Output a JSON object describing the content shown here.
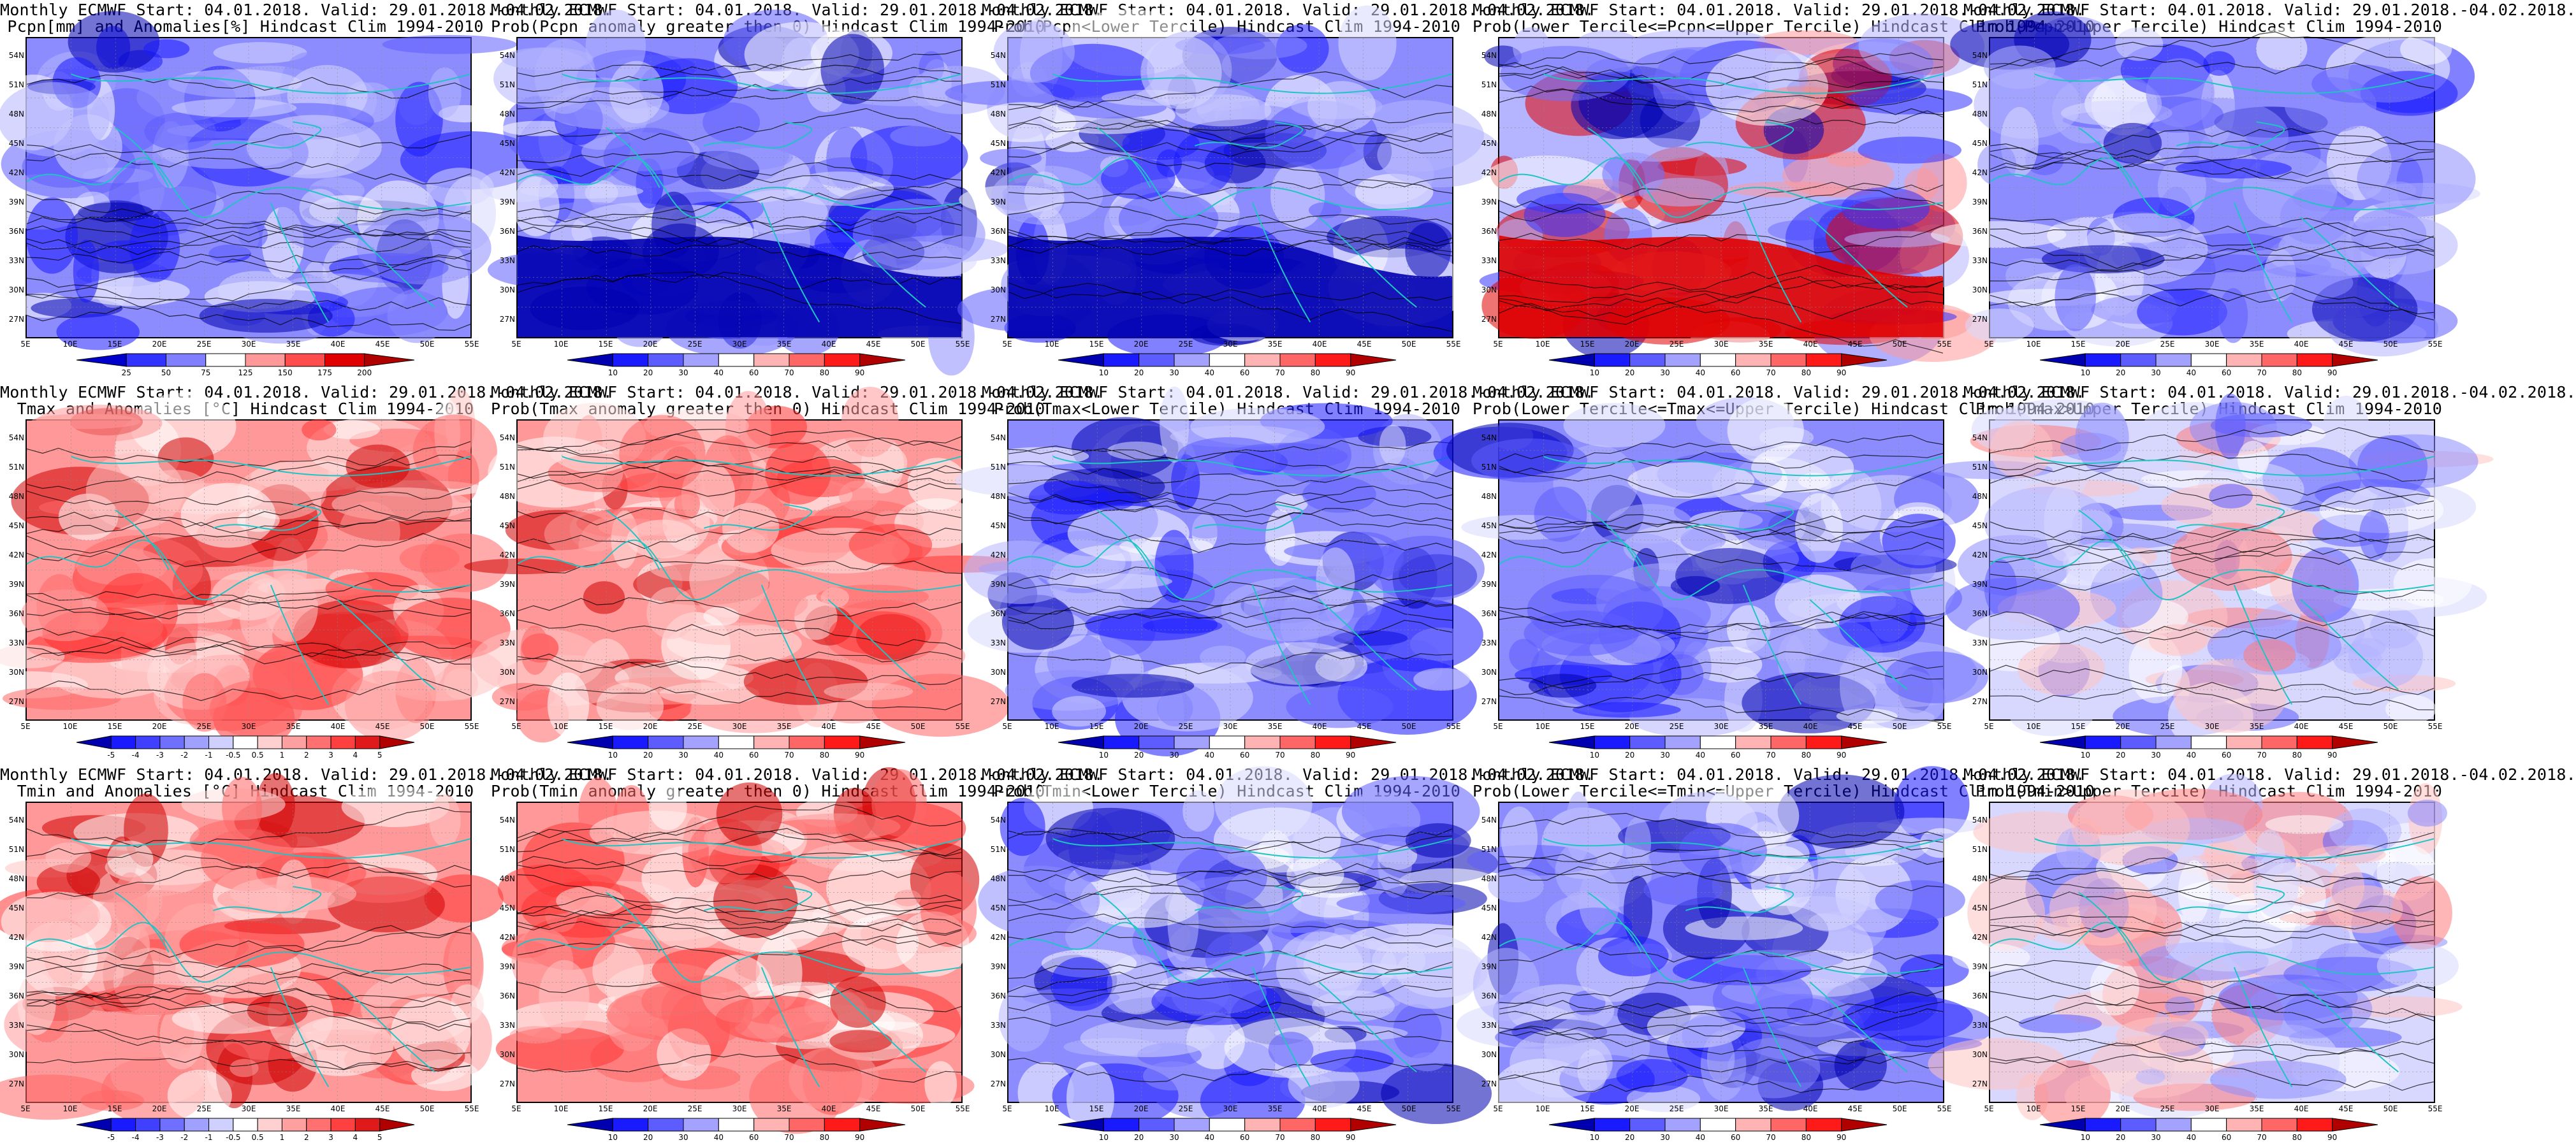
{
  "panel_titles": [
    {
      "line1": "Monthly ECMWF Start: 04.01.2018. Valid: 29.01.2018.-04.02.2018.",
      "line2": "Pcpn[mm] and Anomalies[%] Hindcast Clim 1994-2010"
    },
    {
      "line1": "Monthly ECMWF Start: 04.01.2018. Valid: 29.01.2018.-04.02.2018.",
      "line2": "Prob(Pcpn anomaly greater then 0) Hindcast Clim 1994-2010"
    },
    {
      "line1": "Monthly ECMWF Start: 04.01.2018. Valid: 29.01.2018.-04.02.2018.",
      "line2": "Prob(Pcpn<Lower Tercile) Hindcast Clim 1994-2010"
    },
    {
      "line1": "Monthly ECMWF Start: 04.01.2018. Valid: 29.01.2018.-04.02.2018.",
      "line2": "Prob(Lower Tercile<=Pcpn<=Upper Tercile) Hindcast Clim 1994-2010"
    },
    {
      "line1": "Monthly ECMWF Start: 04.01.2018. Valid: 29.01.2018.-04.02.2018.",
      "line2": "Prob(Pcpn>Upper Tercile) Hindcast Clim 1994-2010"
    },
    {
      "line1": "Monthly ECMWF Start: 04.01.2018. Valid: 29.01.2018.-04.02.2018.",
      "line2": "Tmax and Anomalies [°C] Hindcast Clim 1994-2010"
    },
    {
      "line1": "Monthly ECMWF Start: 04.01.2018. Valid: 29.01.2018.-04.02.2018.",
      "line2": "Prob(Tmax anomaly greater then 0) Hindcast Clim 1994-2010"
    },
    {
      "line1": "Monthly ECMWF Start: 04.01.2018. Valid: 29.01.2018.-04.02.2018.",
      "line2": "Prob(Tmax<Lower Tercile) Hindcast Clim 1994-2010"
    },
    {
      "line1": "Monthly ECMWF Start: 04.01.2018. Valid: 29.01.2018.-04.02.2018.",
      "line2": "Prob(Lower Tercile<=Tmax<=Upper Tercile) Hindcast Clim 1994-2010"
    },
    {
      "line1": "Monthly ECMWF Start: 04.01.2018. Valid: 29.01.2018.-04.02.2018.",
      "line2": "Prob(Tmax>Upper Tercile) Hindcast Clim 1994-2010"
    },
    {
      "line1": "Monthly ECMWF Start: 04.01.2018. Valid: 29.01.2018.-04.02.2018.",
      "line2": "Tmin and Anomalies [°C] Hindcast Clim 1994-2010"
    },
    {
      "line1": "Monthly ECMWF Start: 04.01.2018. Valid: 29.01.2018.-04.02.2018.",
      "line2": "Prob(Tmin anomaly greater then 0) Hindcast Clim 1994-2010"
    },
    {
      "line1": "Monthly ECMWF Start: 04.01.2018. Valid: 29.01.2018.-04.02.2018.",
      "line2": "Prob(Tmin<Lower Tercile) Hindcast Clim 1994-2010"
    },
    {
      "line1": "Monthly ECMWF Start: 04.01.2018. Valid: 29.01.2018.-04.02.2018.",
      "line2": "Prob(Lower Tercile<=Tmin<=Upper Tercile) Hindcast Clim 1994-2010"
    },
    {
      "line1": "Monthly ECMWF Start: 04.01.2018. Valid: 29.01.2018.-04.02.2018.",
      "line2": "Prob(Tmin>Upper Tercile) Hindcast Clim 1994-2010"
    }
  ],
  "lat_labels": [
    "54N",
    "51N",
    "48N",
    "45N",
    "42N",
    "39N",
    "36N",
    "33N",
    "30N",
    "27N"
  ],
  "lon_labels": [
    "5E",
    "10E",
    "15E",
    "20E",
    "25E",
    "30E",
    "35E",
    "40E",
    "45E",
    "50E",
    "55E"
  ],
  "colorbars": {
    "pcpn_anomaly": {
      "labels": [
        "25",
        "50",
        "75",
        "125",
        "150",
        "175",
        "200"
      ],
      "colors": [
        "#0000cc",
        "#3333ff",
        "#7f7fff",
        "#ffffff",
        "#ff9999",
        "#ff4d4d",
        "#e00000",
        "#b00000"
      ]
    },
    "probability": {
      "labels": [
        "10",
        "20",
        "30",
        "40",
        "60",
        "70",
        "80",
        "90"
      ],
      "colors": [
        "#0000b0",
        "#1a1aff",
        "#5c5cff",
        "#a3a3ff",
        "#ffffff",
        "#ffb3b3",
        "#ff6666",
        "#ff1a1a",
        "#b00000"
      ]
    },
    "temp_anomaly": {
      "labels": [
        "-5",
        "-4",
        "-3",
        "-2",
        "-1",
        "-0.5",
        "0.5",
        "1",
        "2",
        "3",
        "4",
        "5"
      ],
      "colors": [
        "#0000b0",
        "#1a1aff",
        "#4040ff",
        "#7070ff",
        "#a0a0ff",
        "#d0d0ff",
        "#ffffff",
        "#ffd0d0",
        "#ffa0a0",
        "#ff7070",
        "#ff4040",
        "#e01a1a",
        "#b00000"
      ]
    }
  },
  "colors": {
    "coast": "#1fc4c4",
    "contour": "#000000",
    "blue_dark": "#0000b0",
    "blue_mid": "#5c5cff",
    "blue_light": "#b4b4ff",
    "red_mid": "#ff6666",
    "red_light": "#ffb3b3",
    "red_dark": "#d00000"
  },
  "panel_colorbar": [
    "pcpn_anomaly",
    "probability",
    "probability",
    "probability",
    "probability",
    "temp_anomaly",
    "probability",
    "probability",
    "probability",
    "probability",
    "temp_anomaly",
    "probability",
    "probability",
    "probability",
    "probability"
  ],
  "panel_palette": [
    "blue",
    "blue",
    "blue",
    "blue_red",
    "blue",
    "red",
    "red",
    "blue",
    "blue",
    "mixed",
    "red",
    "red",
    "blue",
    "blue",
    "mixed"
  ]
}
